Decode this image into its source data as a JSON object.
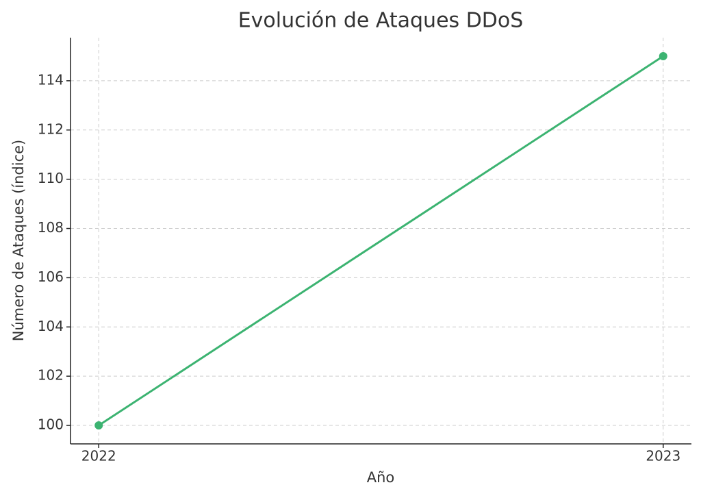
{
  "chart_data": {
    "type": "line",
    "title": "Evolución de Ataques DDoS",
    "xlabel": "Año",
    "ylabel": "Número de Ataques (índice)",
    "x": [
      2022,
      2023
    ],
    "series": [
      {
        "color": "#3cb371",
        "values": [
          100,
          115
        ]
      }
    ],
    "xlim": [
      2021.95,
      2023.05
    ],
    "xticks": [
      2022,
      2023
    ],
    "ylim": [
      99.25,
      115.75
    ],
    "yticks": [
      100,
      102,
      104,
      106,
      108,
      110,
      112,
      114
    ],
    "grid": true
  }
}
